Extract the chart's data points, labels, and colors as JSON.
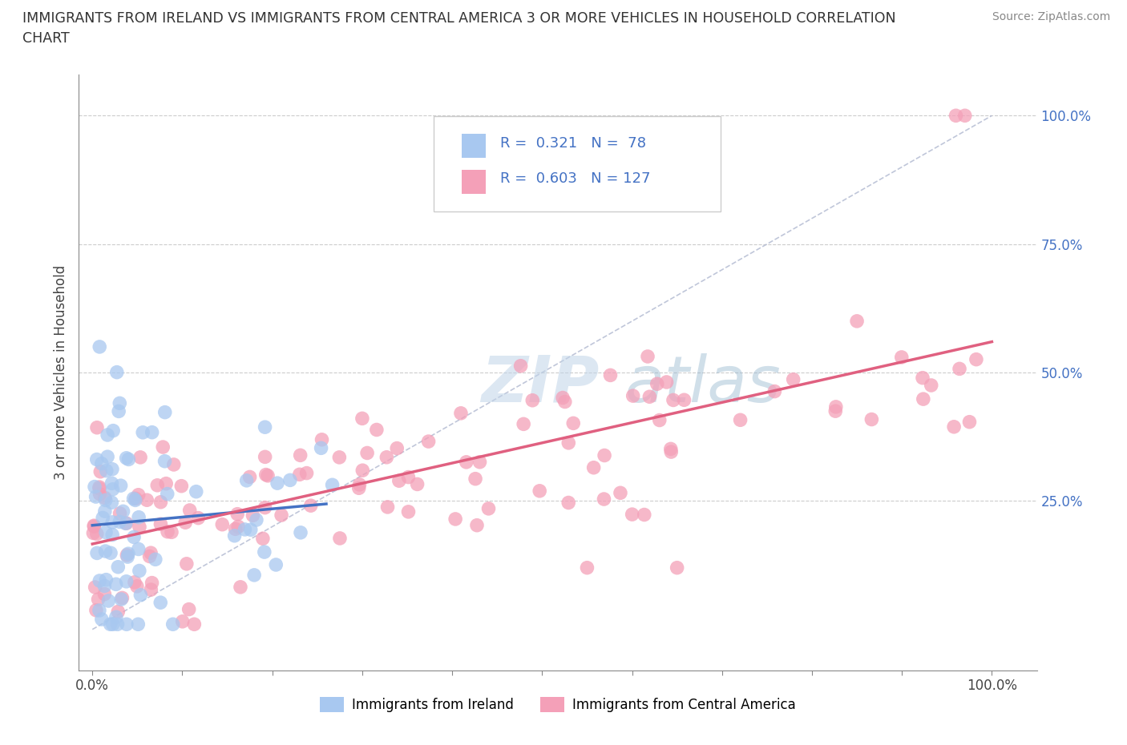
{
  "title_line1": "IMMIGRANTS FROM IRELAND VS IMMIGRANTS FROM CENTRAL AMERICA 3 OR MORE VEHICLES IN HOUSEHOLD CORRELATION",
  "title_line2": "CHART",
  "source": "Source: ZipAtlas.com",
  "ylabel": "3 or more Vehicles in Household",
  "watermark_zip": "ZIP",
  "watermark_atlas": "atlas",
  "ireland_color": "#a8c8f0",
  "ireland_line_color": "#4472c4",
  "central_america_color": "#f4a0b8",
  "central_america_line_color": "#e06080",
  "legend_ireland_text": "R =  0.321   N =  78",
  "legend_ca_text": "R =  0.603   N = 127",
  "ytick_labels": [
    "",
    "25.0%",
    "50.0%",
    "75.0%",
    "100.0%"
  ],
  "ytick_color": "#4472c4",
  "xtick_start": "0.0%",
  "xtick_end": "100.0%",
  "bottom_legend_ireland": "Immigrants from Ireland",
  "bottom_legend_ca": "Immigrants from Central America"
}
